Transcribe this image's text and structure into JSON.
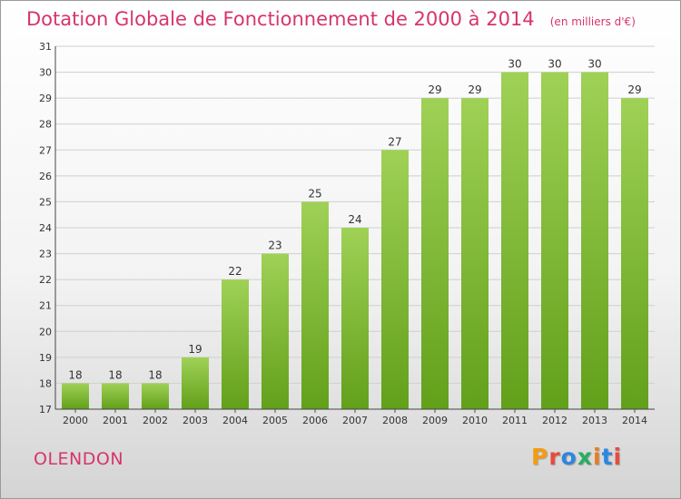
{
  "header": {
    "title": "Dotation Globale de Fonctionnement de 2000 à 2014",
    "subtitle": "(en milliers d'€)"
  },
  "footer": {
    "commune": "OLENDON",
    "brand": "Proxiti"
  },
  "colors": {
    "title": "#d6356a",
    "bar_light": "#9fd156",
    "bar_dark": "#62a01a",
    "grid": "#cfcfcf",
    "axis_text": "#333333",
    "logo_letters": [
      "#f39c12",
      "#e74c3c",
      "#2e86de",
      "#27ae60",
      "#e67e22",
      "#2e86de",
      "#e74c3c"
    ]
  },
  "chart_data": {
    "type": "bar",
    "title": "Dotation Globale de Fonctionnement de 2000 à 2014",
    "subtitle": "(en milliers d'€)",
    "xlabel": "",
    "ylabel": "",
    "categories": [
      "2000",
      "2001",
      "2002",
      "2003",
      "2004",
      "2005",
      "2006",
      "2007",
      "2008",
      "2009",
      "2010",
      "2011",
      "2012",
      "2013",
      "2014"
    ],
    "values": [
      18,
      18,
      18,
      19,
      22,
      23,
      25,
      24,
      27,
      29,
      29,
      30,
      30,
      30,
      29
    ],
    "ylim": [
      17,
      31
    ],
    "yticks": [
      17,
      18,
      19,
      20,
      21,
      22,
      23,
      24,
      25,
      26,
      27,
      28,
      29,
      30,
      31
    ],
    "grid": true,
    "legend": "none"
  }
}
